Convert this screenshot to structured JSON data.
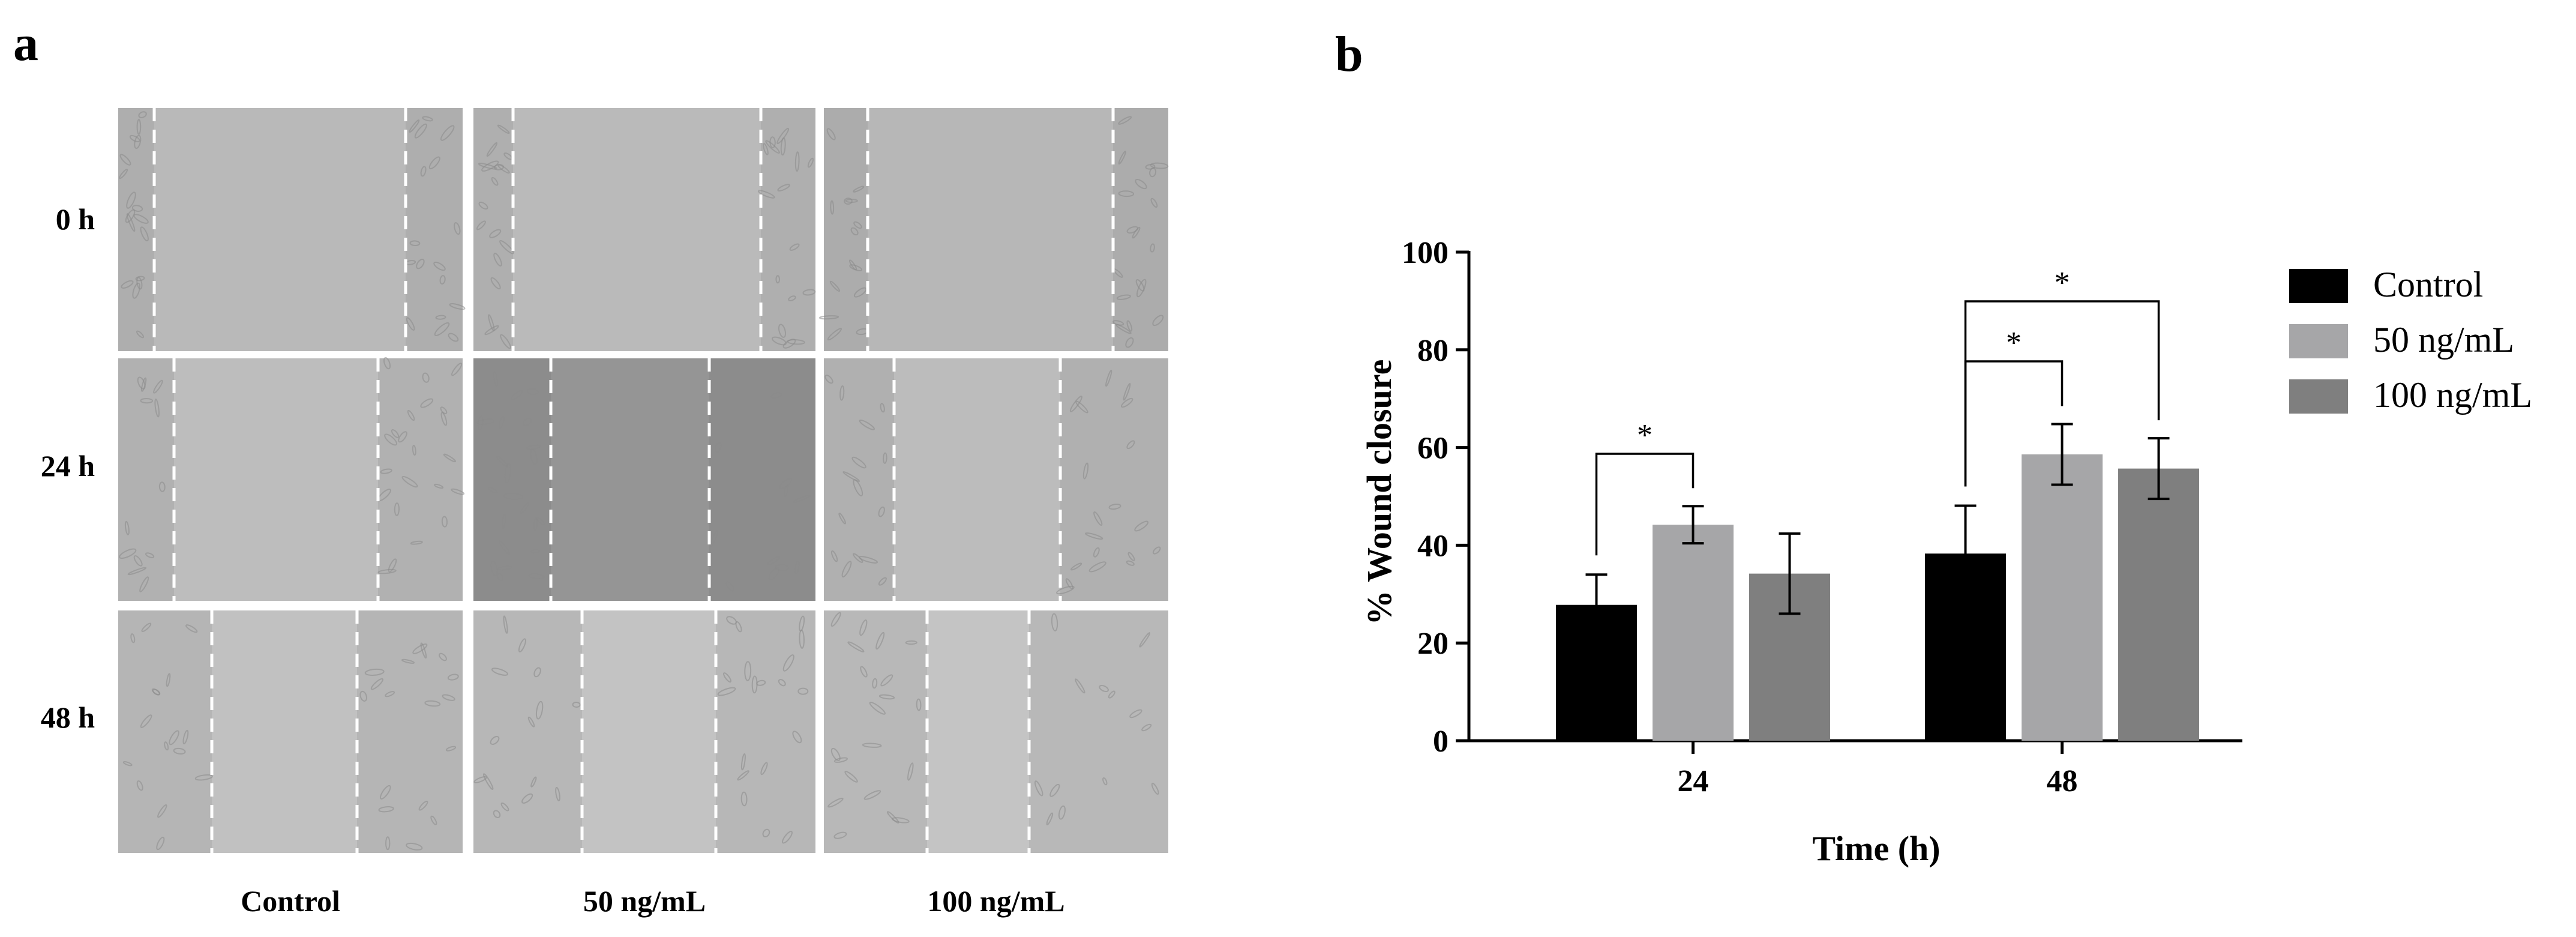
{
  "panel_a": {
    "label": "a",
    "row_labels": [
      "0 h",
      "24 h",
      "48 h"
    ],
    "col_labels": [
      "Control",
      "50 ng/mL",
      "100 ng/mL"
    ],
    "tone": [
      [
        "#b9b9b9",
        "#bababa",
        "#b7b7b7"
      ],
      [
        "#bdbdbd",
        "#959595",
        "#bcbcbc"
      ],
      [
        "#c1c1c1",
        "#c3c3c3",
        "#c4c4c4"
      ]
    ]
  },
  "panel_b": {
    "label": "b"
  },
  "chart_data": {
    "type": "bar",
    "title": "",
    "xlabel": "Time (h)",
    "ylabel": "% Wound closure",
    "categories": [
      "24",
      "48"
    ],
    "ylim": [
      0,
      100
    ],
    "yticks": [
      0,
      20,
      40,
      60,
      80,
      100
    ],
    "legend_position": "top-right",
    "grid": false,
    "series": [
      {
        "name": "Control",
        "values": [
          27.8,
          38.3
        ],
        "errors": [
          6.2,
          9.8
        ],
        "color": "#000000"
      },
      {
        "name": "50 ng/mL",
        "values": [
          44.2,
          58.6
        ],
        "errors": [
          3.8,
          6.2
        ],
        "color": "#a6a6a8"
      },
      {
        "name": "100 ng/mL",
        "values": [
          34.2,
          55.7
        ],
        "errors": [
          8.2,
          6.2
        ],
        "color": "#7f7f7f"
      }
    ],
    "significance": [
      {
        "category": "24",
        "from": "Control",
        "to": "50 ng/mL",
        "label": "*"
      },
      {
        "category": "48",
        "from": "Control",
        "to": "50 ng/mL",
        "label": "*"
      },
      {
        "category": "48",
        "from": "Control",
        "to": "100 ng/mL",
        "label": "*"
      }
    ]
  }
}
